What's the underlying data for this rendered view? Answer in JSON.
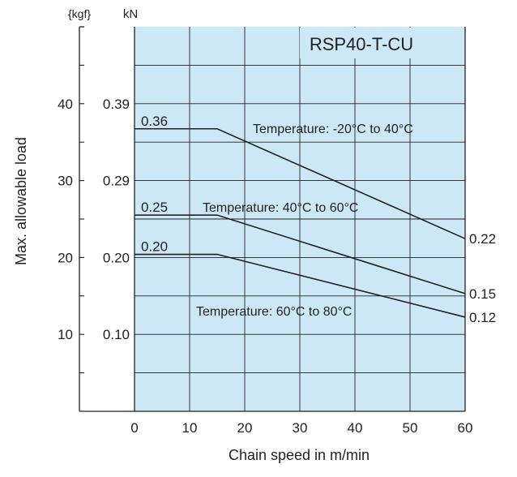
{
  "chart_data": {
    "type": "line",
    "title": "RSP40-T-CU",
    "xlabel": "Chain speed in m/min",
    "ylabel": "Max. allowable load",
    "kgf_unit_label": "{kgf}",
    "kn_unit_label": "kN",
    "xlim": [
      0,
      60
    ],
    "x_ticks": [
      "0",
      "10",
      "20",
      "30",
      "40",
      "50",
      "60"
    ],
    "x_tick_values": [
      0,
      10,
      20,
      30,
      40,
      50,
      60
    ],
    "kgf_ticks": [
      {
        "label": "40",
        "kgf": 40
      },
      {
        "label": "30",
        "kgf": 30
      },
      {
        "label": "20",
        "kgf": 20
      },
      {
        "label": "10",
        "kgf": 10
      }
    ],
    "kn_ticks": [
      {
        "label": "0.39",
        "kgf": 40
      },
      {
        "label": "0.29",
        "kgf": 30
      },
      {
        "label": "0.20",
        "kgf": 20
      },
      {
        "label": "0.10",
        "kgf": 10
      }
    ],
    "kn_per_kgf": 0.0098,
    "grid": true,
    "background_color": "#cce8f7",
    "series": [
      {
        "name": "Temperature: -20°C to 40°C",
        "x": [
          0,
          15,
          60
        ],
        "y": [
          0.36,
          0.36,
          0.22
        ],
        "start_label": "0.36",
        "end_label": "0.22"
      },
      {
        "name": "Temperature: 40°C to 60°C",
        "x": [
          0,
          15,
          60
        ],
        "y": [
          0.25,
          0.25,
          0.15
        ],
        "start_label": "0.25",
        "end_label": "0.15"
      },
      {
        "name": "Temperature: 60°C to 80°C",
        "x": [
          0,
          15,
          60
        ],
        "y": [
          0.2,
          0.2,
          0.12
        ],
        "start_label": "0.20",
        "end_label": "0.12"
      }
    ]
  }
}
